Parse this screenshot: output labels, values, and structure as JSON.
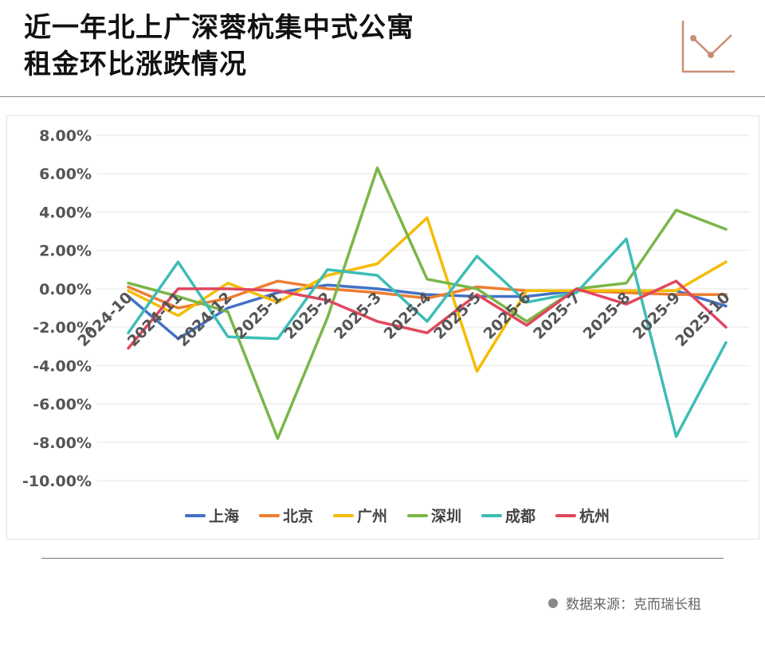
{
  "header": {
    "title_line1": "近一年北上广深蓉杭集中式公寓",
    "title_line2": "租金环比涨跌情况"
  },
  "footer": {
    "source_text": "数据来源：克而瑞长租"
  },
  "colors": {
    "accent_icon": "#c98e74",
    "rule": "#8a8a8a"
  },
  "chart_data": {
    "type": "line",
    "categories": [
      "2024-10",
      "2024-11",
      "2024-12",
      "2025-1",
      "2025-2",
      "2025-3",
      "2025-4",
      "2025-5",
      "2025-6",
      "2025-7",
      "2025-8",
      "2025-9",
      "2025-10"
    ],
    "ylim": [
      -10,
      8
    ],
    "yticks": [
      8,
      6,
      4,
      2,
      0,
      -2,
      -4,
      -6,
      -8,
      -10
    ],
    "ytick_labels": [
      "8.00%",
      "6.00%",
      "4.00%",
      "2.00%",
      "0.00%",
      "-2.00%",
      "-4.00%",
      "-6.00%",
      "-8.00%",
      "-10.00%"
    ],
    "grid": true,
    "legend": "bottom",
    "series": [
      {
        "name": "上海",
        "color": "#4472c4",
        "values": [
          -0.4,
          -2.6,
          -1.0,
          -0.2,
          0.2,
          0.0,
          -0.3,
          -0.4,
          -0.4,
          -0.1,
          -0.1,
          -0.1,
          -0.9
        ]
      },
      {
        "name": "北京",
        "color": "#ed7d31",
        "values": [
          0.1,
          -1.0,
          -0.5,
          0.4,
          0.0,
          -0.2,
          -0.5,
          0.1,
          -0.1,
          -0.1,
          -0.2,
          -0.3,
          -0.3
        ]
      },
      {
        "name": "广州",
        "color": "#f5bc00",
        "values": [
          -0.1,
          -1.4,
          0.3,
          -0.7,
          0.7,
          1.3,
          3.7,
          -4.3,
          -0.1,
          -0.1,
          -0.1,
          -0.1,
          1.4
        ]
      },
      {
        "name": "深圳",
        "color": "#7ab648",
        "values": [
          0.3,
          -0.4,
          -1.2,
          -7.8,
          -1.5,
          6.3,
          0.5,
          0.0,
          -1.7,
          0.0,
          0.3,
          4.1,
          3.1
        ]
      },
      {
        "name": "成都",
        "color": "#3dbdb5",
        "values": [
          -2.3,
          1.4,
          -2.5,
          -2.6,
          1.0,
          0.7,
          -1.7,
          1.7,
          -0.7,
          -0.2,
          2.6,
          -7.7,
          -2.8
        ]
      },
      {
        "name": "杭州",
        "color": "#e0475e",
        "values": [
          -3.1,
          0.0,
          0.0,
          -0.1,
          -0.6,
          -1.7,
          -2.3,
          -0.3,
          -1.9,
          0.0,
          -0.8,
          0.4,
          -2.0
        ]
      }
    ]
  }
}
